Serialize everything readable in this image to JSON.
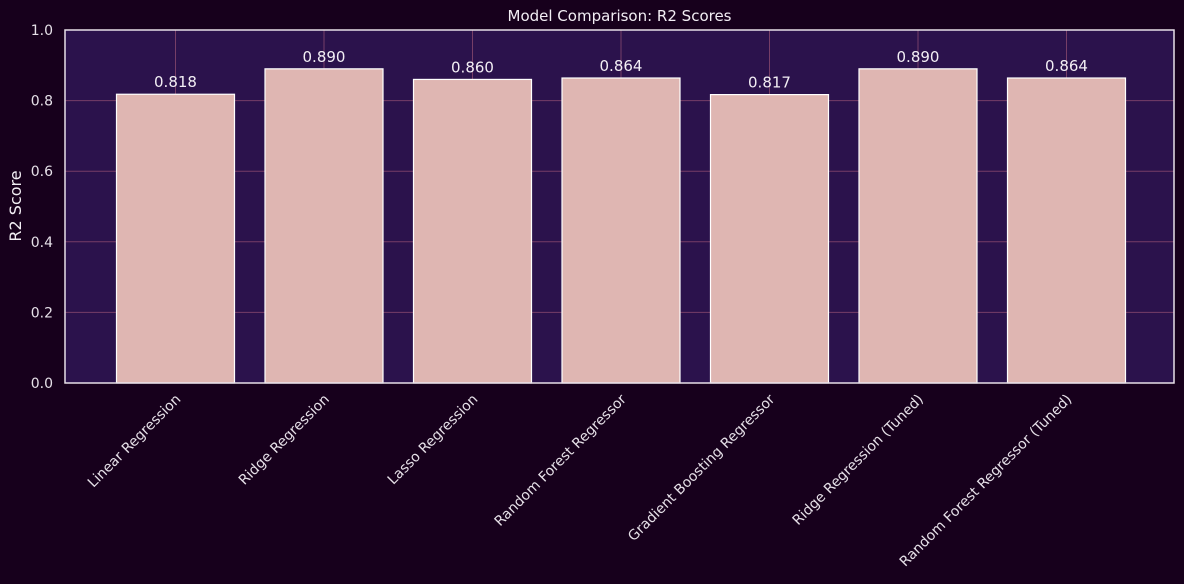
{
  "chart_data": {
    "type": "bar",
    "title": "Model Comparison: R2 Scores",
    "xlabel": "",
    "ylabel": "R2 Score",
    "ylim": [
      0,
      1.0
    ],
    "yticks": [
      "0.0",
      "0.2",
      "0.4",
      "0.6",
      "0.8",
      "1.0"
    ],
    "categories": [
      "Linear Regression",
      "Ridge Regression",
      "Lasso Regression",
      "Random Forest Regressor",
      "Gradient Boosting Regressor",
      "Ridge Regression (Tuned)",
      "Random Forest Regressor (Tuned)"
    ],
    "values": [
      0.818,
      0.89,
      0.86,
      0.864,
      0.817,
      0.89,
      0.864
    ],
    "value_labels": [
      "0.818",
      "0.890",
      "0.860",
      "0.864",
      "0.817",
      "0.890",
      "0.864"
    ],
    "grid": true,
    "colors": {
      "background": "#17001c",
      "plot_background": "#2b124c",
      "bar_fill": "#dfb6b2",
      "bar_edge": "#ffffff",
      "grid": "#8a4a6e",
      "text": "#f2eef4"
    }
  }
}
